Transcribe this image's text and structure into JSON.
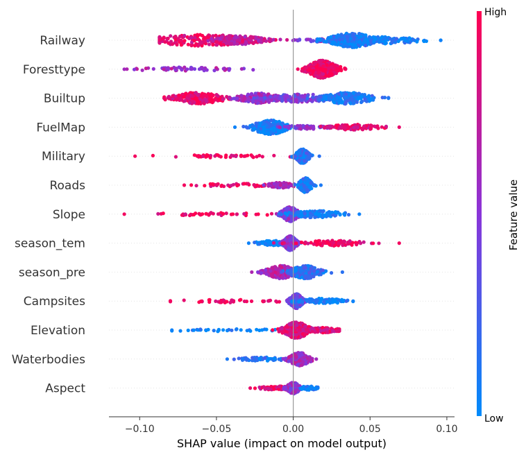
{
  "chart_data": {
    "type": "scatter",
    "subtype": "shap-beeswarm",
    "title": "",
    "xlabel": "SHAP value (impact on model output)",
    "ylabel": "",
    "xlim": [
      -0.12,
      0.105
    ],
    "x_ticks": [
      -0.1,
      -0.05,
      0.0,
      0.05,
      0.1
    ],
    "x_tick_labels": [
      "−0.10",
      "−0.05",
      "0.00",
      "0.05",
      "0.10"
    ],
    "grid": false,
    "colorbar": {
      "title": "Feature value",
      "high_label": "High",
      "low_label": "Low",
      "low_color": "#008bfb",
      "high_color": "#ff0051",
      "mid_color": "#8a35d9"
    },
    "features": [
      {
        "name": "Railway",
        "min": -0.087,
        "max": 0.096,
        "clusters": [
          [
            -0.06,
            0.025,
            7,
            0.9
          ],
          [
            -0.035,
            0.012,
            5,
            0.75
          ],
          [
            0.022,
            0.012,
            2,
            0.5
          ],
          [
            0.038,
            0.011,
            9,
            0.08
          ],
          [
            0.06,
            0.016,
            4,
            0.05
          ]
        ]
      },
      {
        "name": "Foresttype",
        "min": -0.11,
        "max": 0.034,
        "clusters": [
          [
            -0.07,
            0.022,
            2,
            0.6
          ],
          [
            0.019,
            0.007,
            11,
            0.95
          ]
        ]
      },
      {
        "name": "Builtup",
        "min": -0.084,
        "max": 0.062,
        "clusters": [
          [
            -0.062,
            0.012,
            7,
            0.92
          ],
          [
            -0.022,
            0.01,
            6,
            0.6
          ],
          [
            0.005,
            0.015,
            5,
            0.45
          ],
          [
            0.035,
            0.012,
            7,
            0.1
          ]
        ]
      },
      {
        "name": "FuelMap",
        "min": -0.038,
        "max": 0.069,
        "clusters": [
          [
            -0.015,
            0.008,
            9,
            0.05
          ],
          [
            0.01,
            0.01,
            2,
            0.5
          ],
          [
            0.04,
            0.012,
            3,
            0.9
          ]
        ]
      },
      {
        "name": "Military",
        "min": -0.103,
        "max": 0.017,
        "clusters": [
          [
            -0.05,
            0.028,
            1.5,
            0.95
          ],
          [
            0.006,
            0.003,
            9,
            0.15
          ]
        ]
      },
      {
        "name": "Roads",
        "min": -0.071,
        "max": 0.018,
        "clusters": [
          [
            -0.035,
            0.02,
            1.5,
            0.95
          ],
          [
            -0.008,
            0.006,
            3,
            0.6
          ],
          [
            0.008,
            0.003,
            9,
            0.1
          ]
        ]
      },
      {
        "name": "Slope",
        "min": -0.11,
        "max": 0.043,
        "clusters": [
          [
            -0.05,
            0.028,
            1.5,
            0.95
          ],
          [
            -0.002,
            0.004,
            9,
            0.5
          ],
          [
            0.015,
            0.012,
            4,
            0.05
          ]
        ]
      },
      {
        "name": "season_tem",
        "min": -0.029,
        "max": 0.069,
        "clusters": [
          [
            -0.012,
            0.008,
            3,
            0.05
          ],
          [
            -0.002,
            0.003,
            9,
            0.5
          ],
          [
            0.025,
            0.016,
            3,
            0.95
          ]
        ]
      },
      {
        "name": "season_pre",
        "min": -0.027,
        "max": 0.032,
        "clusters": [
          [
            -0.008,
            0.007,
            8,
            0.65
          ],
          [
            0.008,
            0.007,
            8,
            0.15
          ]
        ]
      },
      {
        "name": "Campsites",
        "min": -0.08,
        "max": 0.039,
        "clusters": [
          [
            -0.04,
            0.022,
            1.5,
            0.95
          ],
          [
            0.002,
            0.003,
            9,
            0.4
          ],
          [
            0.018,
            0.011,
            3,
            0.05
          ]
        ]
      },
      {
        "name": "Elevation",
        "min": -0.079,
        "max": 0.03,
        "clusters": [
          [
            -0.045,
            0.022,
            1.2,
            0.05
          ],
          [
            0.002,
            0.006,
            10,
            0.85
          ],
          [
            0.02,
            0.007,
            3,
            0.85
          ]
        ]
      },
      {
        "name": "Waterbodies",
        "min": -0.043,
        "max": 0.015,
        "clusters": [
          [
            -0.02,
            0.01,
            2,
            0.1
          ],
          [
            0.004,
            0.005,
            8,
            0.6
          ]
        ]
      },
      {
        "name": "Aspect",
        "min": -0.028,
        "max": 0.016,
        "clusters": [
          [
            -0.01,
            0.008,
            2,
            0.9
          ],
          [
            0.0,
            0.003,
            7,
            0.55
          ],
          [
            0.01,
            0.004,
            2,
            0.05
          ]
        ]
      }
    ]
  }
}
